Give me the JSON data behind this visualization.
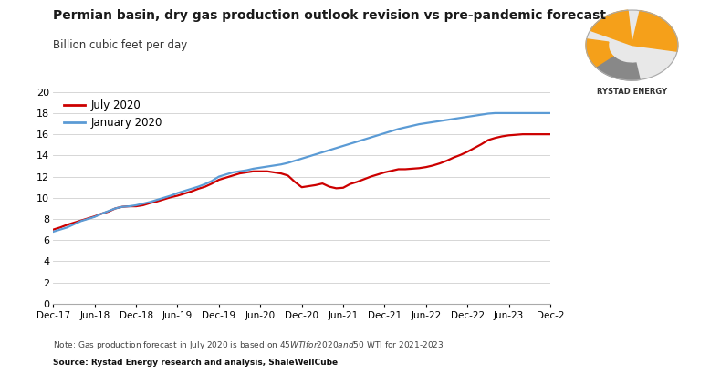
{
  "title": "Permian basin, dry gas production outlook revision vs pre-pandemic forecast",
  "subtitle": "Billion cubic feet per day",
  "note": "Note: Gas production forecast in July 2020 is based on $45 WTI for 2020 and $50 WTI for 2021-2023",
  "source": "Source: Rystad Energy research and analysis, ShaleWellCube",
  "legend": [
    "July 2020",
    "January 2020"
  ],
  "line_colors": [
    "#cc0000",
    "#5b9bd5"
  ],
  "ylim": [
    0,
    20
  ],
  "yticks": [
    0,
    2,
    4,
    6,
    8,
    10,
    12,
    14,
    16,
    18,
    20
  ],
  "xtick_labels": [
    "Dec-17",
    "Jun-18",
    "Dec-18",
    "Jun-19",
    "Dec-19",
    "Jun-20",
    "Dec-20",
    "Jun-21",
    "Dec-21",
    "Jun-22",
    "Dec-22",
    "Jun-23",
    "Dec-2"
  ],
  "background_color": "#ffffff",
  "july2020_y": [
    7.0,
    7.2,
    7.45,
    7.65,
    7.85,
    8.05,
    8.25,
    8.5,
    8.7,
    9.0,
    9.15,
    9.2,
    9.2,
    9.3,
    9.5,
    9.65,
    9.85,
    10.05,
    10.2,
    10.4,
    10.6,
    10.85,
    11.05,
    11.35,
    11.7,
    11.9,
    12.1,
    12.3,
    12.4,
    12.5,
    12.5,
    12.5,
    12.4,
    12.3,
    12.1,
    11.5,
    11.0,
    11.1,
    11.2,
    11.35,
    11.05,
    10.9,
    10.95,
    11.3,
    11.5,
    11.75,
    12.0,
    12.2,
    12.4,
    12.55,
    12.7,
    12.7,
    12.75,
    12.8,
    12.9,
    13.05,
    13.25,
    13.5,
    13.8,
    14.05,
    14.35,
    14.7,
    15.05,
    15.45,
    15.65,
    15.8,
    15.9,
    15.95,
    16.0,
    16.0,
    16.0,
    16.0,
    16.0
  ],
  "jan2020_y": [
    6.8,
    7.0,
    7.2,
    7.5,
    7.8,
    8.0,
    8.2,
    8.5,
    8.75,
    9.0,
    9.15,
    9.2,
    9.3,
    9.45,
    9.6,
    9.8,
    10.0,
    10.2,
    10.45,
    10.65,
    10.85,
    11.05,
    11.3,
    11.6,
    12.0,
    12.2,
    12.4,
    12.5,
    12.6,
    12.75,
    12.85,
    12.95,
    13.05,
    13.15,
    13.3,
    13.5,
    13.7,
    13.9,
    14.1,
    14.3,
    14.5,
    14.7,
    14.9,
    15.1,
    15.3,
    15.5,
    15.7,
    15.9,
    16.1,
    16.3,
    16.5,
    16.65,
    16.8,
    16.95,
    17.05,
    17.15,
    17.25,
    17.35,
    17.45,
    17.55,
    17.65,
    17.75,
    17.85,
    17.95,
    18.0,
    18.0,
    18.0,
    18.0,
    18.0,
    18.0,
    18.0,
    18.0,
    18.0
  ]
}
